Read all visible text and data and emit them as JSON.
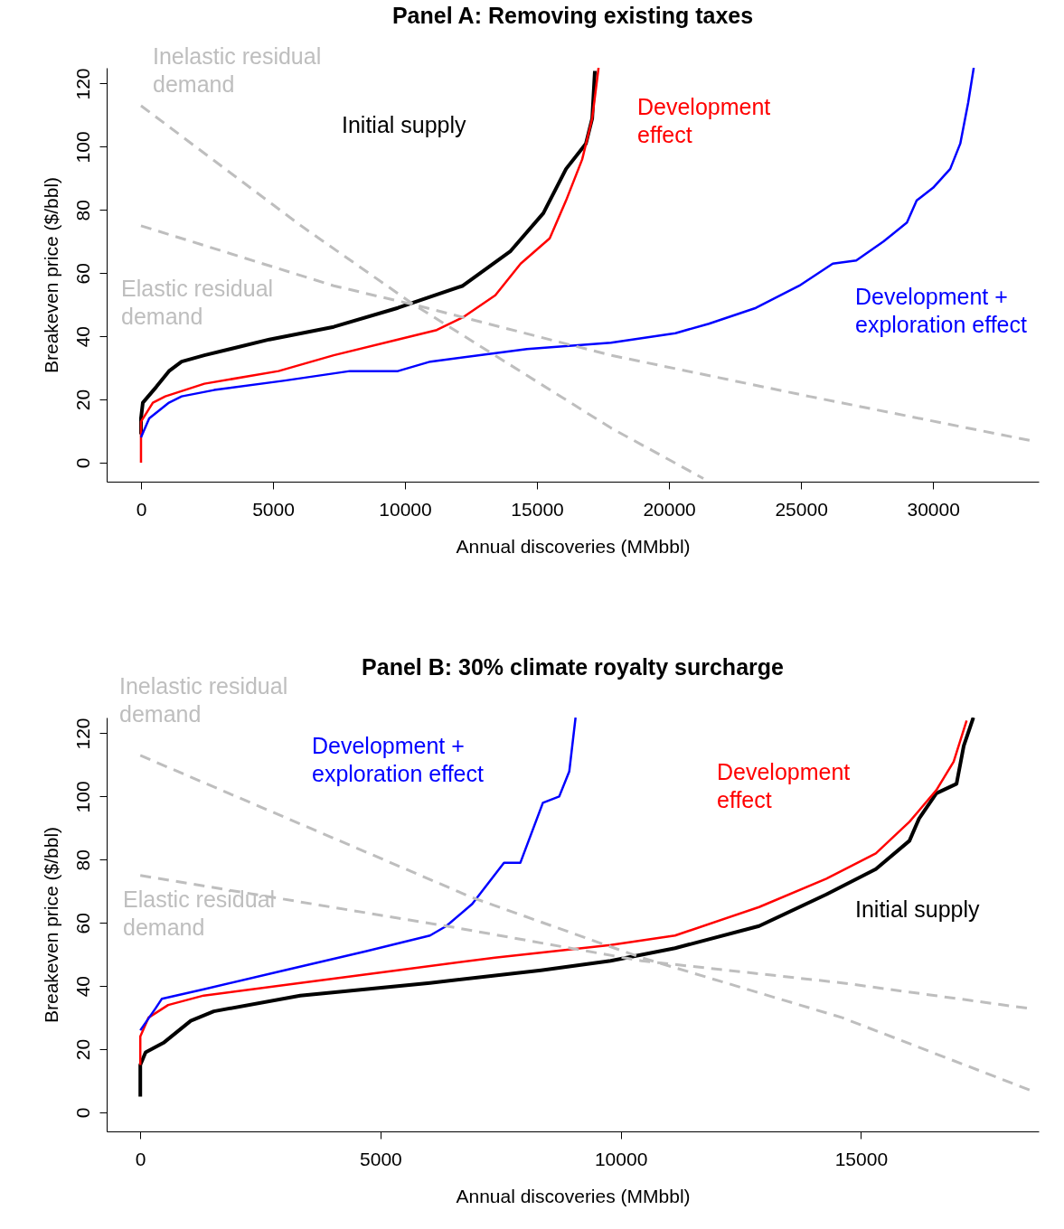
{
  "chart_data": [
    {
      "type": "line",
      "title": "Panel A: Removing existing taxes",
      "xlabel": "Annual discoveries (MMbbl)",
      "ylabel": "Breakeven price ($/bbl)",
      "xlim": [
        -1300,
        34000
      ],
      "ylim": [
        -6,
        125
      ],
      "xticks": [
        0,
        5000,
        10000,
        15000,
        20000,
        25000,
        30000
      ],
      "yticks": [
        0,
        20,
        40,
        60,
        80,
        100,
        120
      ],
      "series": [
        {
          "name": "Initial supply",
          "color": "#000000",
          "x": [
            0,
            0,
            70,
            580,
            1060,
            1540,
            2400,
            4860,
            7300,
            9730,
            12190,
            14000,
            15240,
            16100,
            16850,
            17090,
            17190
          ],
          "values": [
            9,
            14,
            19,
            24,
            29,
            32,
            34,
            39,
            43,
            49,
            56,
            67,
            79,
            93,
            101,
            109,
            124
          ]
        },
        {
          "name": "Development effect",
          "color": "#ff0000",
          "x": [
            0,
            0,
            450,
            920,
            2400,
            5210,
            7300,
            9730,
            11200,
            12190,
            13420,
            14380,
            15480,
            16100,
            16710,
            17090,
            17330
          ],
          "values": [
            0,
            13,
            19,
            21,
            25,
            29,
            34,
            39,
            42,
            46,
            53,
            63,
            71,
            83,
            96,
            109,
            125
          ]
        },
        {
          "name": "Development + exploration effect",
          "color": "#0000ff",
          "x": [
            0,
            310,
            1060,
            1540,
            2770,
            5450,
            7910,
            9730,
            10960,
            14620,
            17800,
            20240,
            21510,
            23290,
            24930,
            26200,
            27090,
            28120,
            29010,
            29380,
            30000,
            30650,
            31030,
            31330,
            31540
          ],
          "values": [
            8,
            14,
            19,
            21,
            23,
            26,
            29,
            29,
            32,
            36,
            38,
            41,
            44,
            49,
            56,
            63,
            64,
            70,
            76,
            83,
            87,
            93,
            101,
            114,
            125
          ]
        },
        {
          "name": "Inelastic residual demand",
          "color": "#bebebe",
          "line_style": "dashed",
          "x": [
            0,
            6060,
            10340,
            17800,
            21300
          ],
          "values": [
            113,
            75,
            50,
            11,
            -5
          ]
        },
        {
          "name": "Elastic residual demand",
          "color": "#bebebe",
          "line_style": "dashed",
          "x": [
            0,
            7300,
            10340,
            17800,
            25300,
            33700
          ],
          "values": [
            75,
            56,
            50,
            34,
            21,
            7
          ]
        }
      ]
    },
    {
      "type": "line",
      "title": "Panel B: 30% climate royalty surcharge",
      "xlabel": "Annual discoveries (MMbbl)",
      "ylabel": "Breakeven price ($/bbl)",
      "xlim": [
        -700,
        18700
      ],
      "ylim": [
        -6,
        125
      ],
      "xticks": [
        0,
        5000,
        10000,
        15000
      ],
      "yticks": [
        0,
        20,
        40,
        60,
        80,
        100,
        120
      ],
      "series": [
        {
          "name": "Initial supply",
          "color": "#000000",
          "x": [
            0,
            0,
            110,
            480,
            1050,
            1530,
            3330,
            6030,
            8340,
            9790,
            11130,
            12880,
            14280,
            15310,
            16010,
            16210,
            16570,
            16990,
            17140,
            17340
          ],
          "values": [
            5,
            15,
            19,
            22,
            29,
            32,
            37,
            41,
            45,
            48,
            52,
            59,
            69,
            77,
            86,
            93,
            101,
            104,
            116,
            125
          ]
        },
        {
          "name": "Development effect",
          "color": "#ff0000",
          "x": [
            0,
            0,
            170,
            580,
            1320,
            3330,
            5350,
            7380,
            9790,
            11130,
            12880,
            14280,
            15310,
            16010,
            16570,
            16930,
            17200
          ],
          "values": [
            15,
            24,
            30,
            34,
            37,
            41,
            45,
            49,
            53,
            56,
            65,
            74,
            82,
            92,
            102,
            111,
            124
          ]
        },
        {
          "name": "Development + exploration effect",
          "color": "#0000ff",
          "x": [
            0,
            320,
            450,
            1320,
            3000,
            4690,
            6030,
            6370,
            6910,
            7570,
            7910,
            8380,
            8720,
            8930,
            9060
          ],
          "values": [
            26,
            33,
            36,
            39,
            45,
            51,
            56,
            59,
            66,
            79,
            79,
            98,
            100,
            108,
            125
          ]
        },
        {
          "name": "Inelastic residual demand",
          "color": "#bebebe",
          "line_style": "dashed",
          "x": [
            0,
            6910,
            10430,
            14610,
            18530
          ],
          "values": [
            113,
            68,
            49,
            30,
            7
          ]
        },
        {
          "name": "Elastic residual demand",
          "color": "#bebebe",
          "line_style": "dashed",
          "x": [
            0,
            6370,
            10430,
            14610,
            18460
          ],
          "values": [
            75,
            59,
            48,
            41,
            33
          ]
        }
      ]
    }
  ]
}
